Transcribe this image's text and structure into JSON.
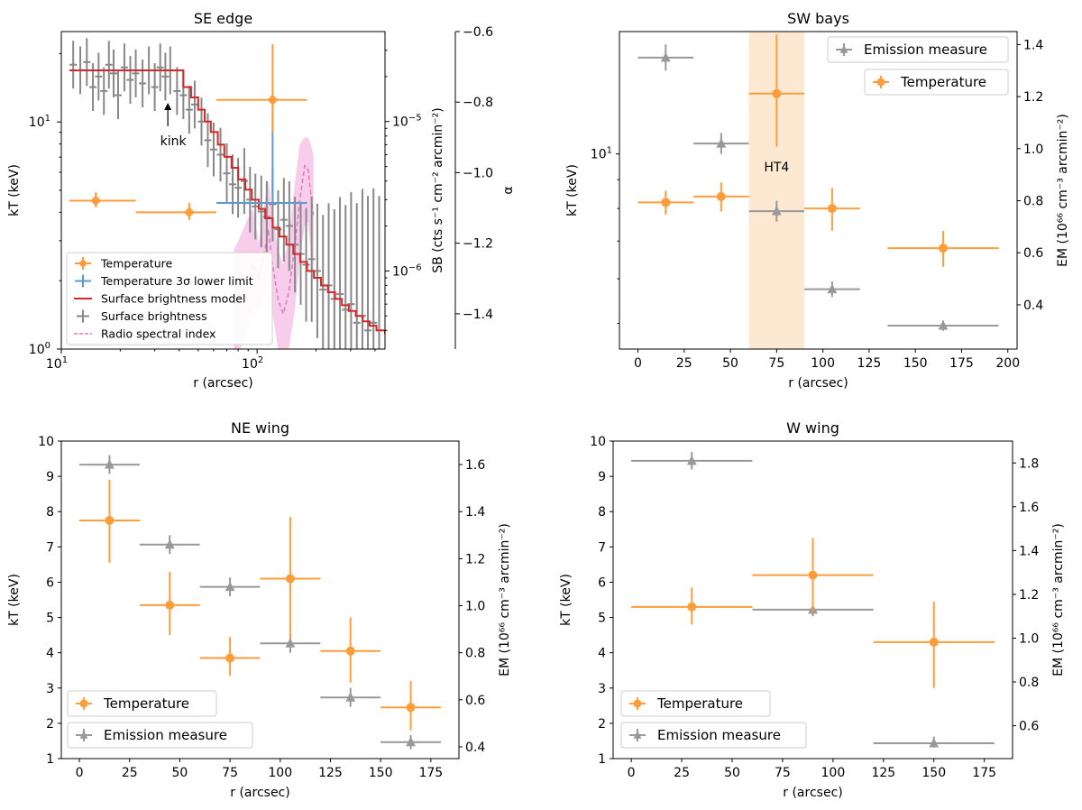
{
  "colors": {
    "temperature": "#ff9d3a",
    "emission": "#999999",
    "lower_limit": "#5b9bd5",
    "sb_model": "#d62728",
    "surface": "#888888",
    "radio": "#e377c2",
    "radio_band": "#f6c4e8",
    "ht4_band": "#fde8d2"
  },
  "chart_data": [
    {
      "id": "se",
      "type": "scatter",
      "title": "SE edge",
      "xlabel": "r (arcsec)",
      "ylabel": "kT (keV)",
      "y2label": "SB (cts s⁻¹ cm⁻² arcmin⁻²)",
      "y3label": "α",
      "xscale": "log",
      "xlim": [
        10,
        450
      ],
      "yscale": "log",
      "ylim": [
        1,
        25
      ],
      "y2scale": "log",
      "y2lim": [
        3e-07,
        4e-05
      ],
      "y3lim": [
        -1.5,
        -0.6
      ],
      "x_ticks": [
        {
          "v": 10,
          "label": "10",
          "exp": "1"
        },
        {
          "v": 100,
          "label": "10",
          "exp": "2"
        }
      ],
      "y_ticks": [
        {
          "v": 1,
          "label": "10",
          "exp": "0"
        },
        {
          "v": 10,
          "label": "10",
          "exp": "1"
        }
      ],
      "y2_ticks": [
        {
          "v": 1e-06,
          "label": "10",
          "exp": "−6"
        },
        {
          "v": 1e-05,
          "label": "10",
          "exp": "−5"
        }
      ],
      "y3_ticks": [
        -1.4,
        -1.2,
        -1.0,
        -0.8,
        -0.6
      ],
      "y3_tick_labels": [
        "−1.4",
        "−1.2",
        "−1.0",
        "−0.8",
        "−0.6"
      ],
      "annotation": {
        "text": "kink",
        "x": 35
      },
      "temperature": [
        {
          "x": 15,
          "xlo": 11,
          "xhi": 24,
          "y": 4.5,
          "ylo": 4.2,
          "yhi": 4.9
        },
        {
          "x": 45,
          "xlo": 24,
          "xhi": 62,
          "y": 4.0,
          "ylo": 3.7,
          "yhi": 4.4
        },
        {
          "x": 120,
          "xlo": 62,
          "xhi": 180,
          "y": 12.5,
          "ylo": 9.0,
          "yhi": 22.0
        }
      ],
      "lower_limit": {
        "x": 120,
        "xlo": 62,
        "xhi": 180,
        "y": 4.4,
        "yhi": 12.0
      },
      "surface_brightness": {
        "x": [
          11.5,
          12.5,
          13.5,
          14.5,
          15.5,
          16.5,
          17.5,
          18.5,
          19.5,
          21,
          22.5,
          24,
          26,
          28,
          30,
          32,
          34,
          36,
          39,
          42,
          45,
          48,
          52,
          56,
          60,
          65,
          70,
          75,
          80,
          86,
          92,
          98,
          105,
          112,
          120,
          128,
          137,
          146,
          156,
          167,
          178,
          190,
          203,
          217,
          232,
          248,
          265,
          283,
          302,
          323,
          345,
          368,
          393,
          420
        ],
        "y": [
          2.4e-05,
          2.2e-05,
          2.5e-05,
          1.7e-05,
          2e-05,
          1.6e-05,
          2.4e-05,
          2.1e-05,
          1.5e-05,
          2.3e-05,
          1.9e-05,
          2.1e-05,
          1.8e-05,
          2.2e-05,
          1.7e-05,
          2.3e-05,
          2e-05,
          2.2e-05,
          1.6e-05,
          1.5e-05,
          1.2e-05,
          1.3e-05,
          1e-05,
          7.5e-06,
          6.5e-06,
          6e-06,
          4.5e-06,
          3.8e-06,
          3.6e-06,
          4e-06,
          3e-06,
          2.7e-06,
          2.5e-06,
          2.3e-06,
          2.8e-06,
          1.9e-06,
          2.2e-06,
          2e-06,
          1.5e-06,
          1.3e-06,
          1.1e-06,
          1.2e-06,
          1e-06,
          7.5e-07,
          8e-07,
          6.5e-07,
          7e-07,
          5.5e-07,
          6e-07,
          4.5e-07,
          5e-07,
          4e-07,
          4.5e-07,
          4e-07
        ],
        "err": [
          0.16,
          0.16,
          0.16,
          0.16,
          0.16,
          0.16,
          0.16,
          0.16,
          0.16,
          0.16,
          0.16,
          0.16,
          0.16,
          0.16,
          0.16,
          0.16,
          0.16,
          0.16,
          0.16,
          0.16,
          0.16,
          0.16,
          0.16,
          0.18,
          0.18,
          0.18,
          0.2,
          0.2,
          0.2,
          0.22,
          0.22,
          0.22,
          0.24,
          0.24,
          0.25,
          0.26,
          0.28,
          0.3,
          0.32,
          0.34,
          0.38,
          0.42,
          0.45,
          0.5,
          0.55,
          0.6,
          0.65,
          0.7,
          0.75,
          0.8,
          0.85,
          0.9,
          0.9,
          0.9
        ]
      },
      "sb_model": {
        "x": [
          11,
          38,
          42,
          46,
          50,
          54,
          58,
          63,
          68,
          74,
          80,
          87,
          94,
          102,
          110,
          120,
          130,
          141,
          153,
          166,
          180,
          195,
          212,
          230,
          250,
          271,
          294,
          319,
          346,
          375,
          407,
          450
        ],
        "y": [
          2.2e-05,
          2.2e-05,
          1.7e-05,
          1.45e-05,
          1.2e-05,
          1e-05,
          8.5e-06,
          7e-06,
          5.8e-06,
          4.9e-06,
          4.1e-06,
          3.5e-06,
          3e-06,
          2.6e-06,
          2.25e-06,
          1.95e-06,
          1.7e-06,
          1.5e-06,
          1.3e-06,
          1.15e-06,
          1e-06,
          9e-07,
          8e-07,
          7.2e-07,
          6.5e-07,
          5.9e-07,
          5.4e-07,
          5e-07,
          4.6e-07,
          4.3e-07,
          4e-07,
          3.8e-07
        ]
      },
      "radio": {
        "x": [
          76,
          82,
          88,
          95,
          102,
          108,
          114,
          120,
          128,
          136,
          145,
          155,
          165,
          175,
          182,
          188,
          194
        ],
        "y": [
          -1.36,
          -1.34,
          -1.3,
          -1.26,
          -1.3,
          -1.24,
          -1.16,
          -1.26,
          -1.36,
          -1.4,
          -1.34,
          -1.22,
          -1.08,
          -0.98,
          -0.99,
          -1.06,
          -1.12
        ],
        "band_lo": [
          -1.5,
          -1.5,
          -1.46,
          -1.38,
          -1.4,
          -1.36,
          -1.3,
          -1.4,
          -1.5,
          -1.5,
          -1.5,
          -1.4,
          -1.25,
          -1.15,
          -1.14,
          -1.22,
          -1.3
        ],
        "band_hi": [
          -1.22,
          -1.18,
          -1.14,
          -1.1,
          -1.2,
          -1.1,
          -1.02,
          -1.12,
          -1.22,
          -1.26,
          -1.18,
          -1.04,
          -0.92,
          -0.9,
          -0.9,
          -0.92,
          -0.95
        ]
      },
      "legend": [
        {
          "label": "Temperature",
          "kind": "temp"
        },
        {
          "label": "Temperature 3σ lower limit",
          "kind": "limit"
        },
        {
          "label": "Surface brightness model",
          "kind": "model"
        },
        {
          "label": "Surface brightness",
          "kind": "sb"
        },
        {
          "label": "Radio spectral index",
          "kind": "radio"
        }
      ]
    },
    {
      "id": "sw",
      "type": "scatter",
      "title": "SW bays",
      "xlabel": "r (arcsec)",
      "ylabel": "kT (keV)",
      "y2label": "EM (10⁶⁶ cm⁻³ arcmin⁻²)",
      "xlim": [
        -10,
        205
      ],
      "yscale": "log",
      "ylim": [
        4.5,
        16.5
      ],
      "y2lim": [
        0.23,
        1.45
      ],
      "x_ticks": [
        0,
        25,
        50,
        75,
        100,
        125,
        150,
        175,
        200
      ],
      "y_ticks": [
        {
          "v": 10,
          "label": "10",
          "exp": "1"
        }
      ],
      "y2_ticks": [
        0.4,
        0.6,
        0.8,
        1.0,
        1.2,
        1.4
      ],
      "y2_tick_labels": [
        "0.4",
        "0.6",
        "0.8",
        "1.0",
        "1.2",
        "1.4"
      ],
      "band": {
        "x0": 60,
        "x1": 90,
        "label": "HT4"
      },
      "temperature": [
        {
          "x": 15,
          "xlo": 0,
          "xhi": 30,
          "y": 8.2,
          "ylo": 7.8,
          "yhi": 8.6
        },
        {
          "x": 45,
          "xlo": 30,
          "xhi": 60,
          "y": 8.4,
          "ylo": 7.9,
          "yhi": 8.9
        },
        {
          "x": 75,
          "xlo": 60,
          "xhi": 90,
          "y": 12.8,
          "ylo": 10.3,
          "yhi": 16.3
        },
        {
          "x": 105,
          "xlo": 90,
          "xhi": 120,
          "y": 8.0,
          "ylo": 7.3,
          "yhi": 8.7
        },
        {
          "x": 165,
          "xlo": 135,
          "xhi": 195,
          "y": 6.8,
          "ylo": 6.3,
          "yhi": 7.3
        }
      ],
      "emission": [
        {
          "x": 15,
          "xlo": 0,
          "xhi": 30,
          "y": 1.35,
          "ylo": 1.3,
          "yhi": 1.4
        },
        {
          "x": 45,
          "xlo": 30,
          "xhi": 60,
          "y": 1.02,
          "ylo": 0.98,
          "yhi": 1.06
        },
        {
          "x": 75,
          "xlo": 60,
          "xhi": 90,
          "y": 0.76,
          "ylo": 0.72,
          "yhi": 0.8
        },
        {
          "x": 105,
          "xlo": 90,
          "xhi": 120,
          "y": 0.46,
          "ylo": 0.43,
          "yhi": 0.49
        },
        {
          "x": 165,
          "xlo": 135,
          "xhi": 195,
          "y": 0.32,
          "ylo": 0.3,
          "yhi": 0.34
        }
      ],
      "legend": [
        {
          "label": "Emission measure",
          "kind": "em"
        },
        {
          "label": "Temperature",
          "kind": "temp"
        }
      ]
    },
    {
      "id": "ne",
      "type": "scatter",
      "title": "NE wing",
      "xlabel": "r (arcsec)",
      "ylabel": "kT (keV)",
      "y2label": "EM (10⁶⁶ cm⁻³ arcmin⁻²)",
      "xlim": [
        -9,
        189
      ],
      "ylim": [
        1,
        10
      ],
      "y2lim": [
        0.35,
        1.7
      ],
      "x_ticks": [
        0,
        25,
        50,
        75,
        100,
        125,
        150,
        175
      ],
      "y_ticks": [
        1,
        2,
        3,
        4,
        5,
        6,
        7,
        8,
        9,
        10
      ],
      "y2_ticks": [
        0.4,
        0.6,
        0.8,
        1.0,
        1.2,
        1.4,
        1.6
      ],
      "y2_tick_labels": [
        "0.4",
        "0.6",
        "0.8",
        "1.0",
        "1.2",
        "1.4",
        "1.6"
      ],
      "temperature": [
        {
          "x": 15,
          "xlo": 0,
          "xhi": 30,
          "y": 7.75,
          "ylo": 6.55,
          "yhi": 8.9
        },
        {
          "x": 45,
          "xlo": 30,
          "xhi": 60,
          "y": 5.35,
          "ylo": 4.5,
          "yhi": 6.3
        },
        {
          "x": 75,
          "xlo": 60,
          "xhi": 90,
          "y": 3.85,
          "ylo": 3.35,
          "yhi": 4.45
        },
        {
          "x": 105,
          "xlo": 90,
          "xhi": 120,
          "y": 6.1,
          "ylo": 4.4,
          "yhi": 7.85
        },
        {
          "x": 135,
          "xlo": 120,
          "xhi": 150,
          "y": 4.05,
          "ylo": 3.15,
          "yhi": 5.0
        },
        {
          "x": 165,
          "xlo": 150,
          "xhi": 180,
          "y": 2.45,
          "ylo": 1.8,
          "yhi": 3.2
        }
      ],
      "emission": [
        {
          "x": 15,
          "xlo": 0,
          "xhi": 30,
          "y": 1.6,
          "ylo": 1.56,
          "yhi": 1.64
        },
        {
          "x": 45,
          "xlo": 30,
          "xhi": 60,
          "y": 1.26,
          "ylo": 1.22,
          "yhi": 1.3
        },
        {
          "x": 75,
          "xlo": 60,
          "xhi": 90,
          "y": 1.08,
          "ylo": 1.04,
          "yhi": 1.12
        },
        {
          "x": 105,
          "xlo": 90,
          "xhi": 120,
          "y": 0.84,
          "ylo": 0.8,
          "yhi": 0.88
        },
        {
          "x": 135,
          "xlo": 120,
          "xhi": 150,
          "y": 0.61,
          "ylo": 0.57,
          "yhi": 0.65
        },
        {
          "x": 165,
          "xlo": 150,
          "xhi": 180,
          "y": 0.42,
          "ylo": 0.39,
          "yhi": 0.45
        }
      ],
      "legend": [
        {
          "label": "Temperature",
          "kind": "temp"
        },
        {
          "label": "Emission measure",
          "kind": "em"
        }
      ]
    },
    {
      "id": "w",
      "type": "scatter",
      "title": "W wing",
      "xlabel": "r (arcsec)",
      "ylabel": "kT (keV)",
      "y2label": "EM (10⁶⁶ cm⁻³ arcmin⁻²)",
      "xlim": [
        -9,
        189
      ],
      "ylim": [
        1,
        10
      ],
      "y2lim": [
        0.45,
        1.9
      ],
      "x_ticks": [
        0,
        25,
        50,
        75,
        100,
        125,
        150,
        175
      ],
      "y_ticks": [
        1,
        2,
        3,
        4,
        5,
        6,
        7,
        8,
        9,
        10
      ],
      "y2_ticks": [
        0.6,
        0.8,
        1.0,
        1.2,
        1.4,
        1.6,
        1.8
      ],
      "y2_tick_labels": [
        "0.6",
        "0.8",
        "1.0",
        "1.2",
        "1.4",
        "1.6",
        "1.8"
      ],
      "temperature": [
        {
          "x": 30,
          "xlo": 0,
          "xhi": 60,
          "y": 5.3,
          "ylo": 4.8,
          "yhi": 5.85
        },
        {
          "x": 90,
          "xlo": 60,
          "xhi": 120,
          "y": 6.2,
          "ylo": 5.15,
          "yhi": 7.25
        },
        {
          "x": 150,
          "xlo": 120,
          "xhi": 180,
          "y": 4.3,
          "ylo": 3.0,
          "yhi": 5.45
        }
      ],
      "emission": [
        {
          "x": 30,
          "xlo": 0,
          "xhi": 60,
          "y": 1.81,
          "ylo": 1.77,
          "yhi": 1.85
        },
        {
          "x": 90,
          "xlo": 60,
          "xhi": 120,
          "y": 1.13,
          "ylo": 1.1,
          "yhi": 1.17
        },
        {
          "x": 150,
          "xlo": 120,
          "xhi": 180,
          "y": 0.52,
          "ylo": 0.5,
          "yhi": 0.55
        }
      ],
      "legend": [
        {
          "label": "Temperature",
          "kind": "temp"
        },
        {
          "label": "Emission measure",
          "kind": "em"
        }
      ]
    }
  ]
}
